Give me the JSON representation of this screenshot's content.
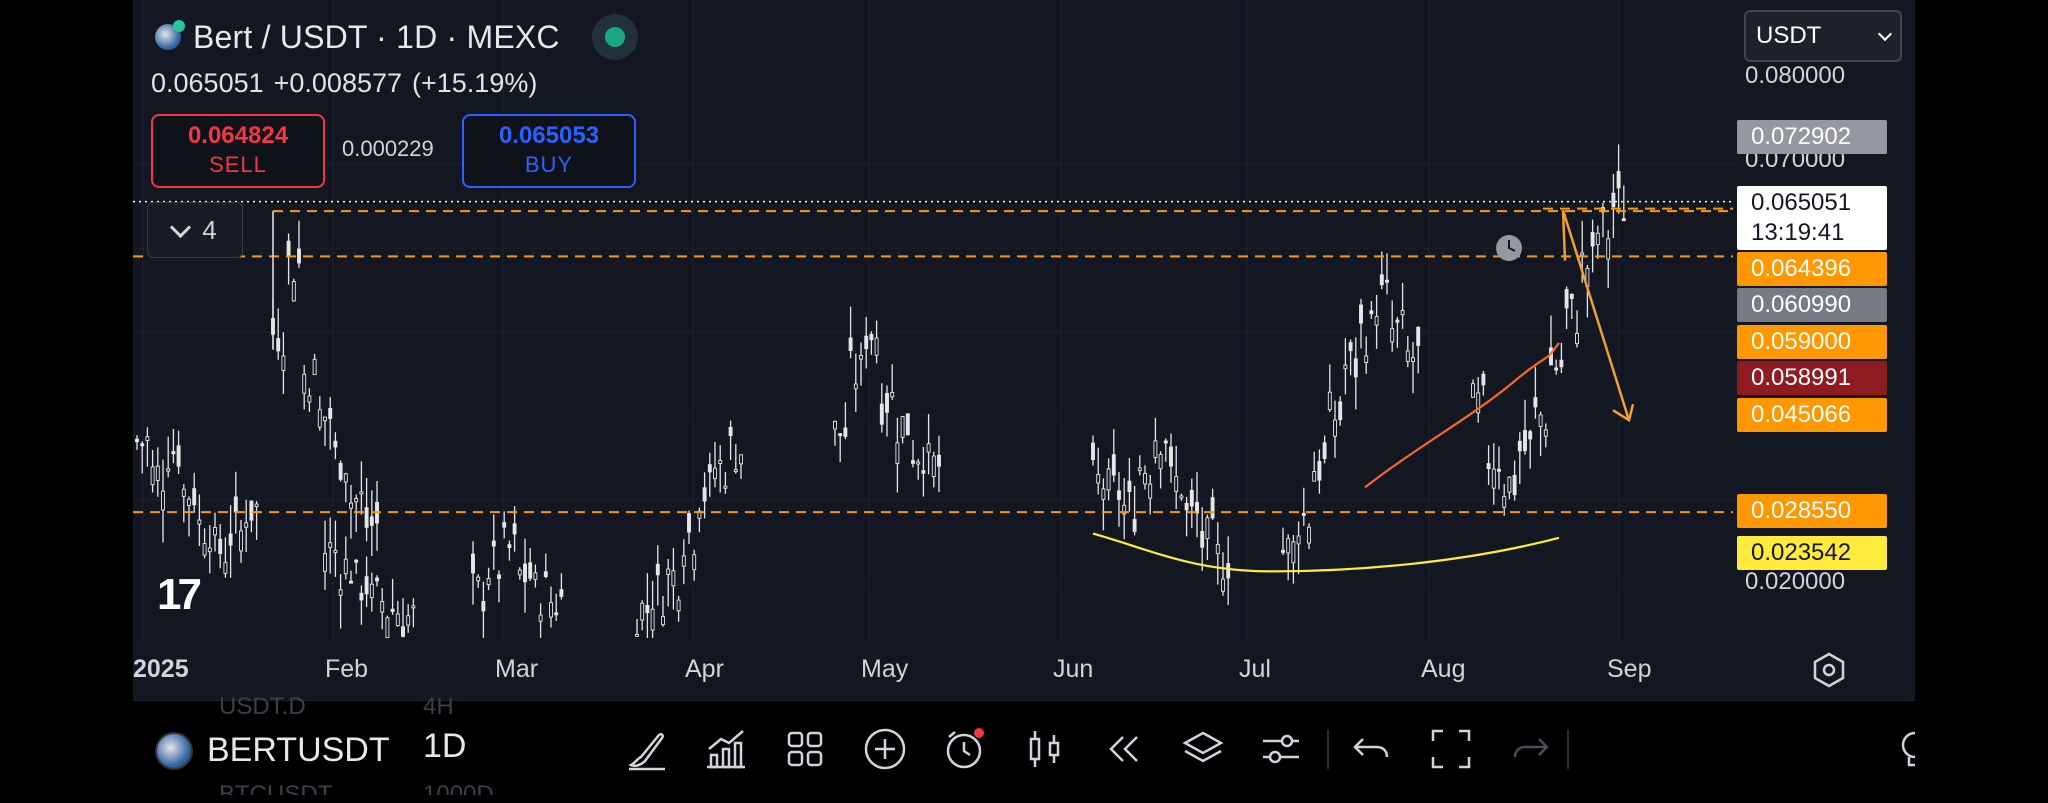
{
  "header": {
    "title": "Bert / USDT · 1D · MEXC",
    "price": "0.065051",
    "change": "+0.008577",
    "change_pct": "(+15.19%)",
    "sell_price": "0.064824",
    "sell_label": "SELL",
    "spread": "0.000229",
    "buy_price": "0.065053",
    "buy_label": "BUY",
    "indicator_count": "4"
  },
  "currency_select": {
    "value": "USDT"
  },
  "price_axis": {
    "labels": [
      "0.080000",
      "0.070000",
      "0.020000"
    ],
    "tags": [
      {
        "value": "0.072902",
        "bg": "#9598a1",
        "fg": "#ffffff"
      },
      {
        "value": "0.064396",
        "bg": "#ff9800",
        "fg": "#ffffff"
      },
      {
        "value": "0.060990",
        "bg": "#787b86",
        "fg": "#ffffff"
      },
      {
        "value": "0.059000",
        "bg": "#ff9800",
        "fg": "#ffffff"
      },
      {
        "value": "0.058991",
        "bg": "#8e1c20",
        "fg": "#ffffff"
      },
      {
        "value": "0.045066",
        "bg": "#ff9800",
        "fg": "#ffffff"
      },
      {
        "value": "0.028550",
        "bg": "#ff9800",
        "fg": "#ffffff"
      },
      {
        "value": "0.023542",
        "bg": "#ffeb3b",
        "fg": "#131722"
      }
    ],
    "last_price": "0.065051",
    "countdown": "13:19:41"
  },
  "time_axis": {
    "labels": [
      "2025",
      "Feb",
      "Mar",
      "Apr",
      "May",
      "Jun",
      "Jul",
      "Aug",
      "Sep"
    ]
  },
  "toolbar": {
    "symbol": "BERTUSDT",
    "interval": "1D",
    "ghost_above": [
      "USDT.D",
      "4H"
    ],
    "ghost_below": [
      "BTCUSDT",
      "1000D"
    ],
    "icons": [
      "brush-icon",
      "indicators-icon",
      "grid-icon",
      "add-circle-icon",
      "alert-clock-icon",
      "candle-type-icon",
      "replay-icon",
      "layers-icon",
      "settings-sliders-icon",
      "undo-icon",
      "fullscreen-icon",
      "redo-icon",
      "lightbulb-icon"
    ]
  },
  "colors": {
    "background": "#131722",
    "candle": "#e6e6e6",
    "hline": "#ff9800",
    "ma_yellow": "#ffeb3b",
    "ma_orange": "#f7682b",
    "arrow": "#f0a030",
    "sell": "#f23645",
    "buy": "#2962ff",
    "live": "#1aa77f"
  },
  "chart_data": {
    "type": "candlestick",
    "symbol": "Bert / USDT",
    "timeframe": "1D",
    "x_axis": [
      "2025",
      "Feb",
      "Mar",
      "Apr",
      "May",
      "Jun",
      "Jul",
      "Aug",
      "Sep"
    ],
    "y_axis_ticks": [
      0.02,
      0.07,
      0.08
    ],
    "horizontal_levels": [
      0.064396,
      0.059,
      0.02855,
      0.065051
    ],
    "moving_averages": [
      {
        "color": "#ffeb3b",
        "last": 0.023542
      },
      {
        "color": "#f7682b",
        "last": 0.045066
      }
    ],
    "approx_daily_close": [
      {
        "period": "Jan",
        "values": [
          0.037,
          0.033,
          0.036,
          0.031,
          0.027,
          0.024,
          0.026,
          0.029
        ]
      },
      {
        "period": "late Jan",
        "values": [
          0.05,
          0.058,
          0.045,
          0.04,
          0.035,
          0.03,
          0.027
        ]
      },
      {
        "period": "Feb",
        "values": [
          0.024,
          0.022,
          0.02,
          0.018,
          0.017,
          0.016
        ]
      },
      {
        "period": "Mar",
        "values": [
          0.019,
          0.022,
          0.024,
          0.021,
          0.019,
          0.018
        ]
      },
      {
        "period": "May",
        "values": [
          0.017,
          0.019,
          0.021,
          0.026,
          0.031,
          0.034,
          0.036
        ]
      },
      {
        "period": "late May",
        "values": [
          0.038,
          0.045,
          0.05,
          0.042,
          0.039,
          0.036,
          0.034
        ]
      },
      {
        "period": "Jun",
        "values": [
          0.032,
          0.031,
          0.029,
          0.034,
          0.038,
          0.032,
          0.028,
          0.025,
          0.023
        ]
      },
      {
        "period": "Jul",
        "values": [
          0.024,
          0.028,
          0.034,
          0.04,
          0.046,
          0.05,
          0.054,
          0.05,
          0.047
        ]
      },
      {
        "period": "Aug",
        "values": [
          0.041,
          0.035,
          0.032,
          0.036,
          0.04,
          0.046,
          0.052,
          0.058,
          0.062,
          0.065051
        ]
      }
    ]
  }
}
